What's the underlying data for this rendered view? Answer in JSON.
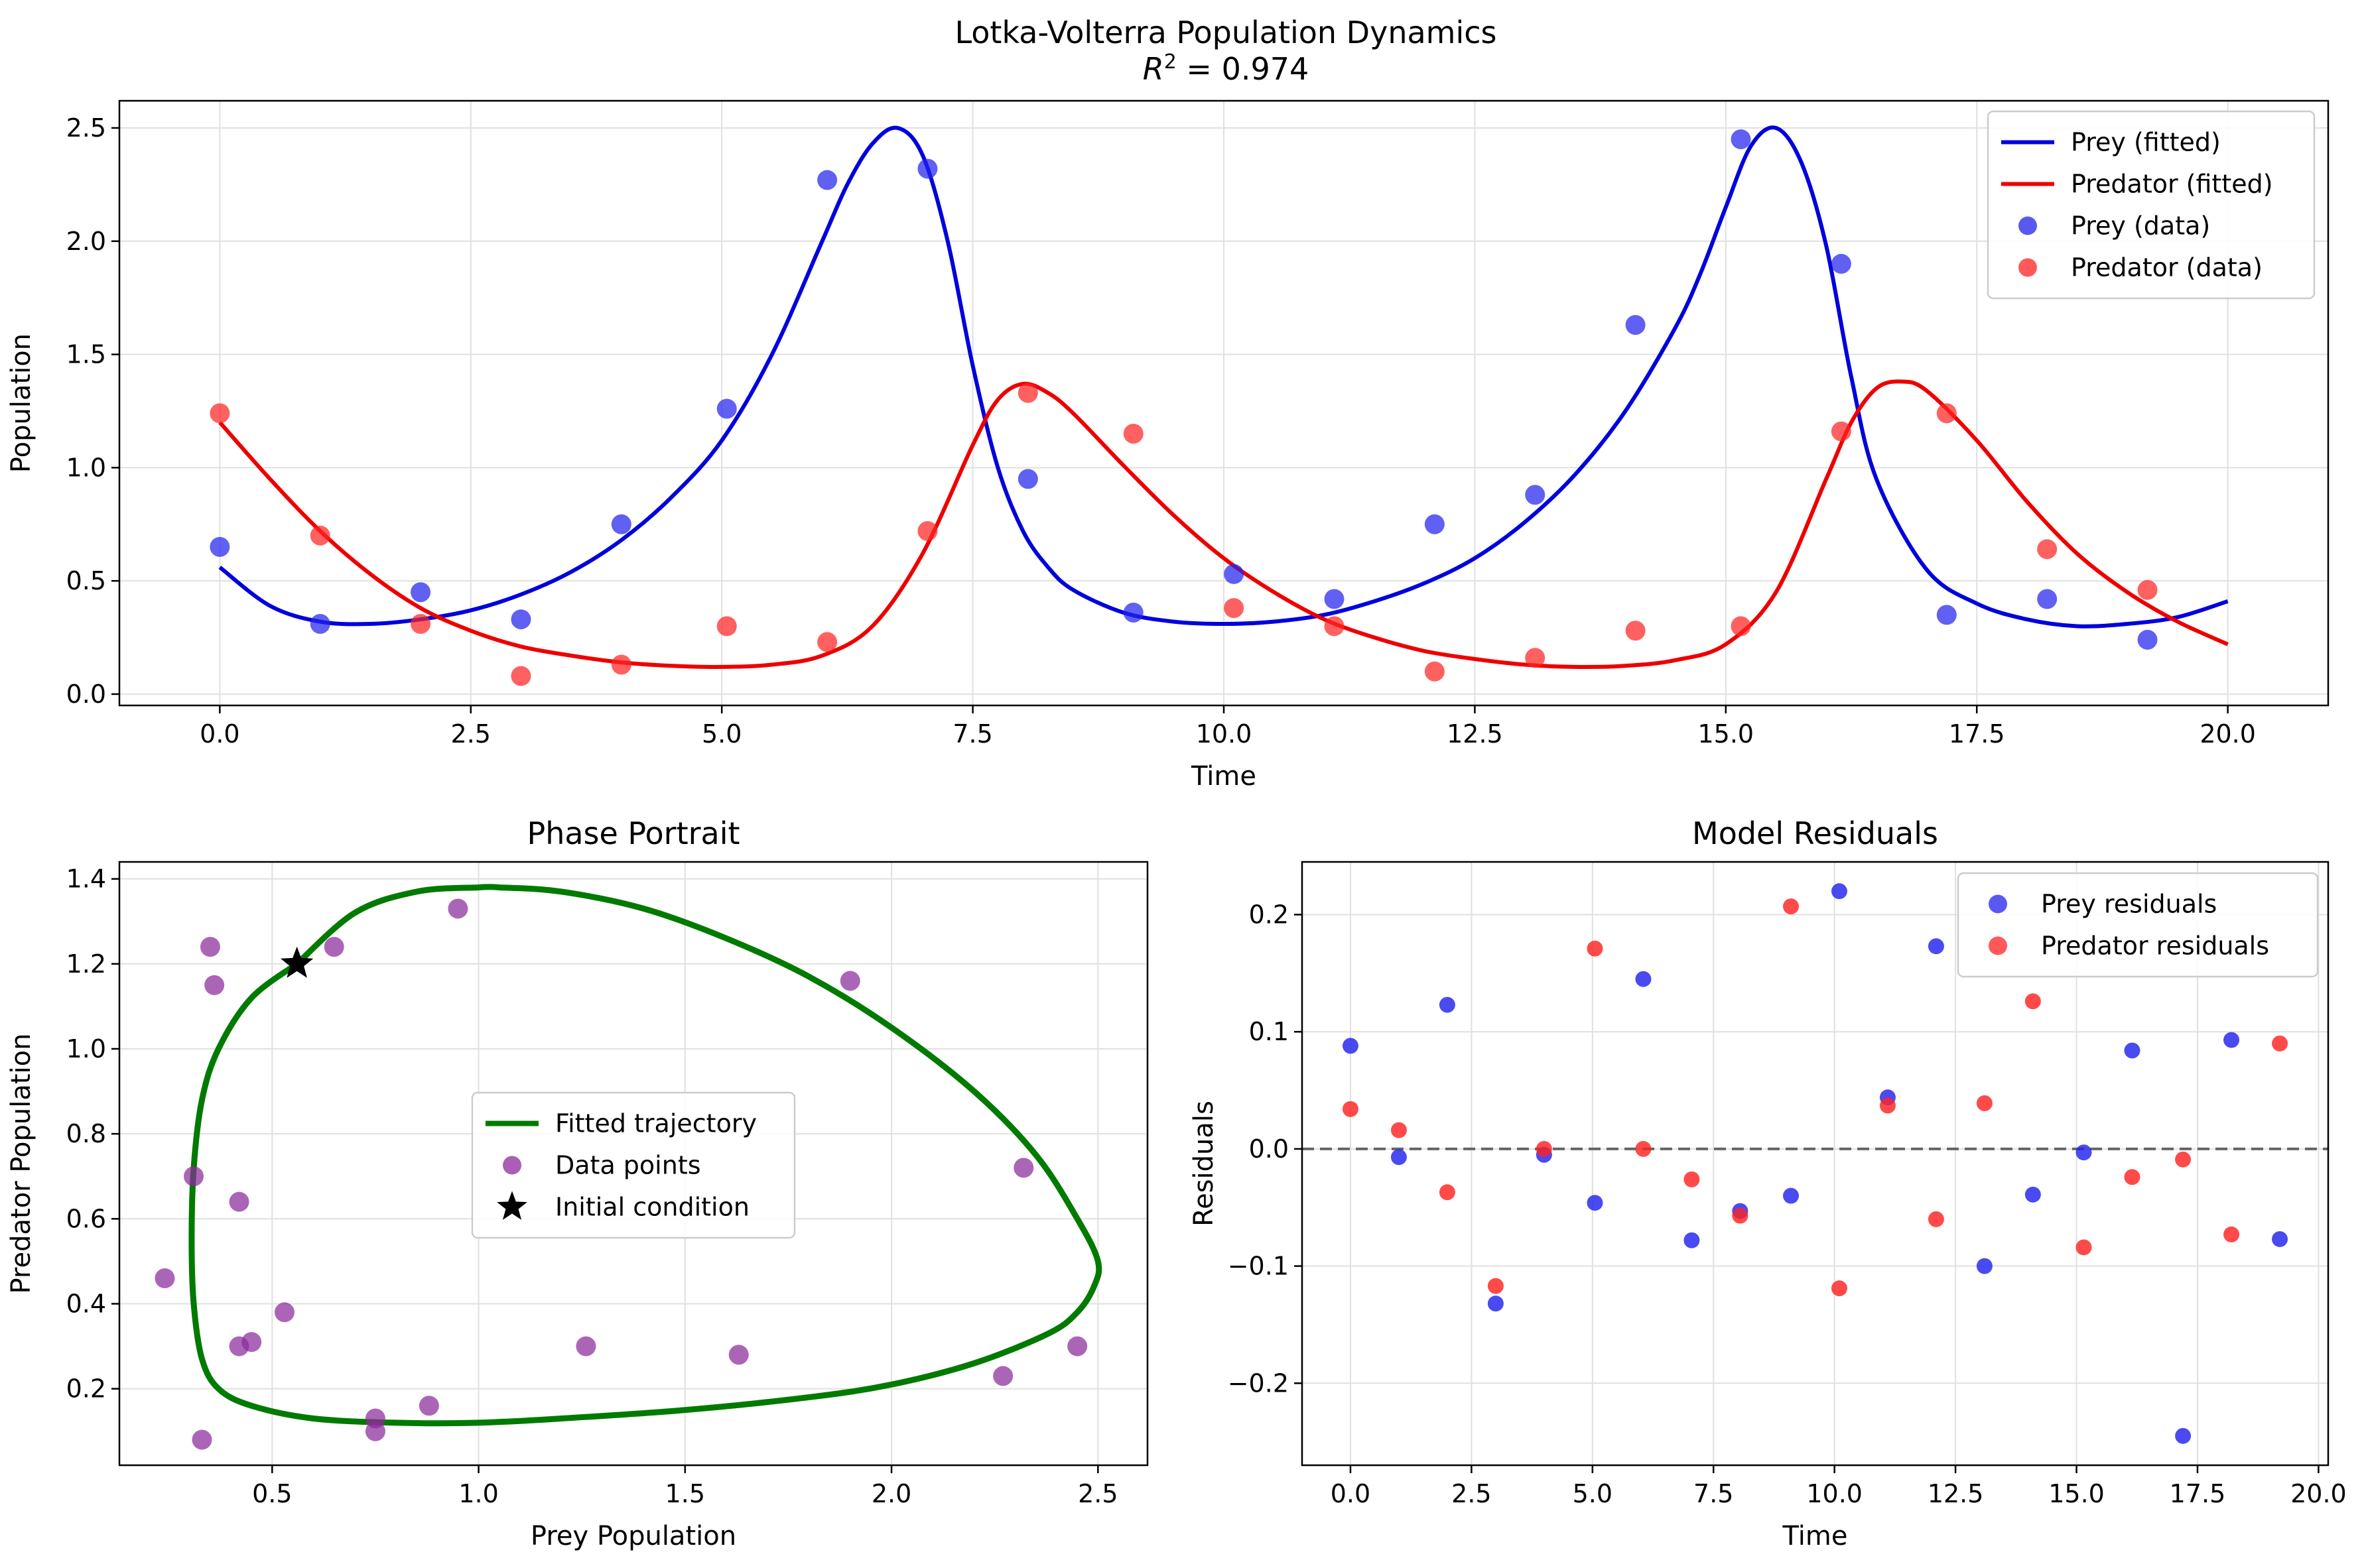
{
  "figure": {
    "title": "Lotka-Volterra Population Dynamics",
    "subtitle_prefix": "R",
    "subtitle_sup": "2",
    "subtitle_suffix": " = 0.974"
  },
  "colors": {
    "prey": "#0000dd",
    "predator": "#ee0000",
    "prey_points": "#2222ee",
    "predator_points": "#ff2222",
    "trajectory": "#007a00",
    "data_points": "#8b2a9b",
    "zero_line": "#666666",
    "grid": "#e0e0e0"
  },
  "chart_data": [
    {
      "id": "timeseries",
      "type": "line",
      "title": "",
      "xlabel": "Time",
      "ylabel": "Population",
      "xlim": [
        -1.0,
        21.0
      ],
      "ylim": [
        -0.05,
        2.62
      ],
      "xticks": [
        0.0,
        2.5,
        5.0,
        7.5,
        10.0,
        12.5,
        15.0,
        17.5,
        20.0
      ],
      "xtick_labels": [
        "0.0",
        "2.5",
        "5.0",
        "7.5",
        "10.0",
        "12.5",
        "15.0",
        "17.5",
        "20.0"
      ],
      "yticks": [
        0.0,
        0.5,
        1.0,
        1.5,
        2.0,
        2.5
      ],
      "ytick_labels": [
        "0.0",
        "0.5",
        "1.0",
        "1.5",
        "2.0",
        "2.5"
      ],
      "grid": true,
      "legend_position": "top-right",
      "series": [
        {
          "name": "Prey (fitted)",
          "kind": "line",
          "color": "#0000dd",
          "x": [
            0,
            0.5,
            1.0,
            1.5,
            2.0,
            2.5,
            3.0,
            3.5,
            4.0,
            4.5,
            5.0,
            5.5,
            6.0,
            6.25,
            6.5,
            6.75,
            7.0,
            7.25,
            7.5,
            7.75,
            8.0,
            8.25,
            8.5,
            9.0,
            9.5,
            10.0,
            10.5,
            11.0,
            11.5,
            12.0,
            12.5,
            13.0,
            13.5,
            14.0,
            14.5,
            14.75,
            15.0,
            15.25,
            15.5,
            15.75,
            16.0,
            16.25,
            16.5,
            17.0,
            17.5,
            18.0,
            18.5,
            19.0,
            19.5,
            20.0
          ],
          "y": [
            0.56,
            0.39,
            0.32,
            0.31,
            0.33,
            0.37,
            0.44,
            0.54,
            0.68,
            0.87,
            1.12,
            1.5,
            2.0,
            2.25,
            2.43,
            2.5,
            2.38,
            2.0,
            1.45,
            1.0,
            0.72,
            0.56,
            0.46,
            0.36,
            0.32,
            0.31,
            0.32,
            0.35,
            0.41,
            0.49,
            0.6,
            0.76,
            0.97,
            1.25,
            1.62,
            1.86,
            2.15,
            2.42,
            2.5,
            2.35,
            1.98,
            1.4,
            0.95,
            0.55,
            0.4,
            0.33,
            0.3,
            0.31,
            0.34,
            0.41
          ]
        },
        {
          "name": "Predator (fitted)",
          "kind": "line",
          "color": "#ee0000",
          "x": [
            0,
            0.5,
            1.0,
            1.5,
            2.0,
            2.5,
            3.0,
            3.5,
            4.0,
            4.5,
            5.0,
            5.5,
            6.0,
            6.5,
            7.0,
            7.5,
            7.75,
            8.0,
            8.25,
            8.5,
            9.0,
            9.5,
            10.0,
            10.5,
            11.0,
            11.5,
            12.0,
            12.5,
            13.0,
            13.5,
            14.0,
            14.5,
            15.0,
            15.5,
            16.0,
            16.25,
            16.5,
            16.75,
            17.0,
            17.5,
            18.0,
            18.5,
            19.0,
            19.5,
            20.0
          ],
          "y": [
            1.2,
            0.95,
            0.72,
            0.53,
            0.38,
            0.28,
            0.21,
            0.17,
            0.14,
            0.125,
            0.12,
            0.13,
            0.17,
            0.3,
            0.62,
            1.1,
            1.3,
            1.37,
            1.33,
            1.24,
            1.01,
            0.79,
            0.6,
            0.45,
            0.33,
            0.25,
            0.19,
            0.155,
            0.13,
            0.12,
            0.125,
            0.15,
            0.22,
            0.45,
            0.95,
            1.2,
            1.35,
            1.38,
            1.34,
            1.12,
            0.85,
            0.62,
            0.45,
            0.32,
            0.22
          ]
        },
        {
          "name": "Prey (data)",
          "kind": "scatter",
          "color": "#2222ee",
          "x": [
            0.0,
            1.0,
            2.0,
            3.0,
            4.0,
            5.05,
            6.05,
            7.05,
            8.05,
            9.1,
            10.1,
            11.1,
            12.1,
            13.1,
            14.1,
            15.15,
            16.15,
            17.2,
            18.2,
            19.2
          ],
          "y": [
            0.65,
            0.31,
            0.45,
            0.33,
            0.75,
            1.26,
            2.27,
            2.32,
            0.95,
            0.36,
            0.53,
            0.42,
            0.75,
            0.88,
            1.63,
            2.45,
            1.9,
            0.35,
            0.42,
            0.24
          ]
        },
        {
          "name": "Predator (data)",
          "kind": "scatter",
          "color": "#ff2222",
          "x": [
            0.0,
            1.0,
            2.0,
            3.0,
            4.0,
            5.05,
            6.05,
            7.05,
            8.05,
            9.1,
            10.1,
            11.1,
            12.1,
            13.1,
            14.1,
            15.15,
            16.15,
            17.2,
            18.2,
            19.2
          ],
          "y": [
            1.24,
            0.7,
            0.31,
            0.08,
            0.13,
            0.3,
            0.23,
            0.72,
            1.33,
            1.15,
            0.38,
            0.3,
            0.1,
            0.16,
            0.28,
            0.3,
            1.16,
            1.24,
            0.64,
            0.46
          ]
        }
      ]
    },
    {
      "id": "phase",
      "type": "line",
      "title": "Phase Portrait",
      "xlabel": "Prey Population",
      "ylabel": "Predator Population",
      "xlim": [
        0.13,
        2.62
      ],
      "ylim": [
        0.02,
        1.44
      ],
      "xticks": [
        0.5,
        1.0,
        1.5,
        2.0,
        2.5
      ],
      "xtick_labels": [
        "0.5",
        "1.0",
        "1.5",
        "2.0",
        "2.5"
      ],
      "yticks": [
        0.2,
        0.4,
        0.6,
        0.8,
        1.0,
        1.2,
        1.4
      ],
      "ytick_labels": [
        "0.2",
        "0.4",
        "0.6",
        "0.8",
        "1.0",
        "1.2",
        "1.4"
      ],
      "grid": true,
      "legend_position": "center",
      "series": [
        {
          "name": "Fitted trajectory",
          "kind": "line",
          "color": "#007a00",
          "x": [
            0.56,
            0.7,
            0.85,
            1.0,
            1.05,
            1.2,
            1.4,
            1.6,
            1.8,
            2.0,
            2.2,
            2.35,
            2.45,
            2.5,
            2.49,
            2.45,
            2.38,
            2.2,
            2.0,
            1.8,
            1.5,
            1.2,
            1.0,
            0.8,
            0.6,
            0.45,
            0.37,
            0.33,
            0.31,
            0.305,
            0.31,
            0.33,
            0.37,
            0.45,
            0.56
          ],
          "y": [
            1.2,
            1.32,
            1.37,
            1.38,
            1.38,
            1.37,
            1.33,
            1.26,
            1.17,
            1.05,
            0.9,
            0.75,
            0.6,
            0.5,
            0.44,
            0.38,
            0.33,
            0.26,
            0.21,
            0.18,
            0.15,
            0.13,
            0.12,
            0.12,
            0.13,
            0.16,
            0.2,
            0.27,
            0.4,
            0.55,
            0.72,
            0.88,
            1.0,
            1.12,
            1.2
          ]
        },
        {
          "name": "Data points",
          "kind": "scatter",
          "color": "#8b2a9b",
          "x": [
            0.65,
            0.31,
            0.45,
            0.33,
            0.75,
            1.26,
            2.27,
            2.32,
            0.95,
            0.36,
            0.53,
            0.42,
            0.75,
            0.88,
            1.63,
            2.45,
            1.9,
            0.35,
            0.42,
            0.24
          ],
          "y": [
            1.24,
            0.7,
            0.31,
            0.08,
            0.13,
            0.3,
            0.23,
            0.72,
            1.33,
            1.15,
            0.38,
            0.3,
            0.1,
            0.16,
            0.28,
            0.3,
            1.16,
            1.24,
            0.64,
            0.46
          ]
        },
        {
          "name": "Initial condition",
          "kind": "marker",
          "color": "#000000",
          "x": [
            0.56
          ],
          "y": [
            1.2
          ]
        }
      ]
    },
    {
      "id": "residuals",
      "type": "scatter",
      "title": "Model Residuals",
      "xlabel": "Time",
      "ylabel": "Residuals",
      "xlim": [
        -1.0,
        20.2
      ],
      "ylim": [
        -0.27,
        0.245
      ],
      "xticks": [
        0.0,
        2.5,
        5.0,
        7.5,
        10.0,
        12.5,
        15.0,
        17.5,
        20.0
      ],
      "xtick_labels": [
        "0.0",
        "2.5",
        "5.0",
        "7.5",
        "10.0",
        "12.5",
        "15.0",
        "17.5",
        "20.0"
      ],
      "yticks": [
        -0.2,
        -0.1,
        0.0,
        0.1,
        0.2
      ],
      "ytick_labels": [
        "−0.2",
        "−0.1",
        "0.0",
        "0.1",
        "0.2"
      ],
      "grid": true,
      "zero_line": true,
      "legend_position": "top-right",
      "series": [
        {
          "name": "Prey residuals",
          "kind": "scatter",
          "color": "#2222ee",
          "x": [
            0.0,
            1.0,
            2.0,
            3.0,
            4.0,
            5.05,
            6.05,
            7.05,
            8.05,
            9.1,
            10.1,
            11.1,
            12.1,
            13.1,
            14.1,
            15.15,
            16.15,
            17.2,
            18.2,
            19.2
          ],
          "y": [
            0.088,
            -0.007,
            0.123,
            -0.132,
            -0.005,
            -0.046,
            0.145,
            -0.078,
            -0.053,
            -0.04,
            0.22,
            0.044,
            0.173,
            -0.1,
            -0.039,
            -0.003,
            0.084,
            -0.245,
            0.093,
            -0.077
          ]
        },
        {
          "name": "Predator residuals",
          "kind": "scatter",
          "color": "#ff2222",
          "x": [
            0.0,
            1.0,
            2.0,
            3.0,
            4.0,
            5.05,
            6.05,
            7.05,
            8.05,
            9.1,
            10.1,
            11.1,
            12.1,
            13.1,
            14.1,
            15.15,
            16.15,
            17.2,
            18.2,
            19.2
          ],
          "y": [
            0.034,
            0.016,
            -0.037,
            -0.117,
            0.0,
            0.171,
            0.0,
            -0.026,
            -0.057,
            0.207,
            -0.119,
            0.037,
            -0.06,
            0.039,
            0.126,
            -0.084,
            -0.024,
            -0.009,
            -0.073,
            0.09
          ]
        }
      ]
    }
  ]
}
